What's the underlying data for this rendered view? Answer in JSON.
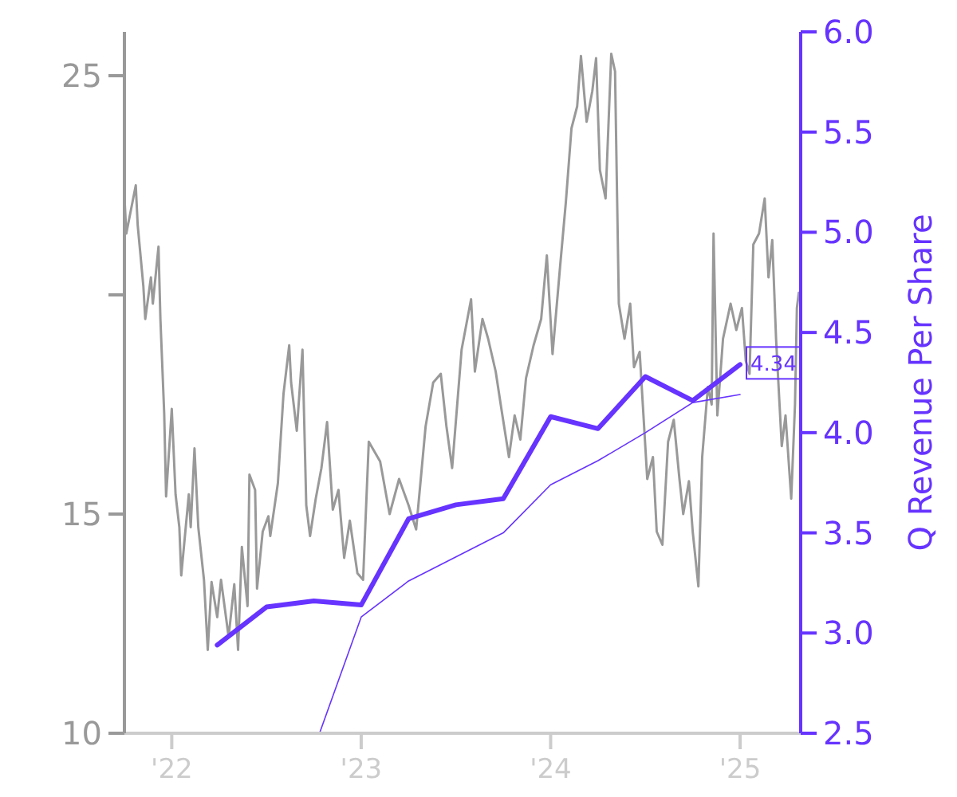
{
  "chart_data": {
    "type": "line",
    "y2label": "Q Revenue Per Share",
    "xlim": [
      2021.75,
      2025.32
    ],
    "xticks": [
      {
        "value": 2022,
        "label": "'22"
      },
      {
        "value": 2023,
        "label": "'23"
      },
      {
        "value": 2024,
        "label": "'24"
      },
      {
        "value": 2025,
        "label": "'25"
      }
    ],
    "ylim": [
      10,
      26
    ],
    "yticks": [
      10,
      15,
      {
        "value": 20,
        "label": null
      },
      25
    ],
    "y2lim": [
      2.5,
      6
    ],
    "y2ticks": [
      2.5,
      {
        "value": 3,
        "label": "3.0"
      },
      3.5,
      {
        "value": 4,
        "label": "4.0"
      },
      4.5,
      {
        "value": 5,
        "label": "5.0"
      },
      5.5,
      {
        "value": 6,
        "label": "6.0"
      }
    ],
    "grid": false,
    "series": [
      {
        "color": "#999999",
        "x": [
          2021.75,
          2021.76,
          2021.81,
          2021.82,
          2021.85,
          2021.86,
          2021.89,
          2021.9,
          2021.93,
          2021.94,
          2021.96,
          2021.97,
          2022.0,
          2022.02,
          2022.04,
          2022.05,
          2022.09,
          2022.1,
          2022.12,
          2022.14,
          2022.17,
          2022.19,
          2022.21,
          2022.24,
          2022.26,
          2022.3,
          2022.33,
          2022.35,
          2022.37,
          2022.4,
          2022.41,
          2022.44,
          2022.45,
          2022.48,
          2022.51,
          2022.52,
          2022.56,
          2022.59,
          2022.62,
          2022.63,
          2022.66,
          2022.69,
          2022.71,
          2022.73,
          2022.76,
          2022.79,
          2022.82,
          2022.85,
          2022.88,
          2022.91,
          2022.94,
          2022.98,
          2023.01,
          2023.04,
          2023.1,
          2023.15,
          2023.2,
          2023.25,
          2023.29,
          2023.34,
          2023.38,
          2023.42,
          2023.45,
          2023.48,
          2023.53,
          2023.58,
          2023.6,
          2023.64,
          2023.67,
          2023.71,
          2023.74,
          2023.78,
          2023.81,
          2023.84,
          2023.87,
          2023.91,
          2023.95,
          2023.98,
          2024.01,
          2024.05,
          2024.08,
          2024.11,
          2024.14,
          2024.16,
          2024.19,
          2024.22,
          2024.24,
          2024.26,
          2024.29,
          2024.32,
          2024.34,
          2024.36,
          2024.39,
          2024.42,
          2024.44,
          2024.47,
          2024.51,
          2024.54,
          2024.56,
          2024.59,
          2024.62,
          2024.65,
          2024.68,
          2024.7,
          2024.73,
          2024.75,
          2024.78,
          2024.8,
          2024.83,
          2024.85,
          2024.86,
          2024.88,
          2024.91,
          2024.95,
          2024.98,
          2025.01,
          2025.03,
          2025.05,
          2025.07,
          2025.1,
          2025.13,
          2025.15,
          2025.17,
          2025.19,
          2025.22,
          2025.24,
          2025.27,
          2025.29,
          2025.3,
          2025.31
        ],
        "values": [
          22.25,
          21.4,
          22.5,
          21.6,
          20.2,
          19.45,
          20.4,
          19.8,
          21.1,
          19.45,
          17.3,
          15.4,
          17.4,
          15.45,
          14.7,
          13.6,
          15.45,
          14.7,
          16.5,
          14.7,
          13.5,
          11.9,
          13.45,
          12.65,
          13.5,
          12.2,
          13.4,
          11.9,
          14.25,
          12.9,
          15.9,
          15.55,
          13.3,
          14.6,
          14.95,
          14.5,
          15.7,
          17.75,
          18.85,
          18.0,
          16.9,
          18.75,
          15.2,
          14.5,
          15.35,
          16.05,
          17.1,
          15.1,
          15.55,
          14.0,
          14.85,
          13.65,
          13.5,
          16.65,
          16.2,
          15.0,
          15.8,
          15.2,
          14.65,
          17.0,
          18.0,
          18.2,
          17.0,
          16.05,
          18.75,
          19.9,
          18.25,
          19.45,
          19.0,
          18.25,
          17.4,
          16.3,
          17.25,
          16.7,
          18.1,
          18.85,
          19.45,
          20.9,
          18.65,
          20.65,
          22.1,
          23.8,
          24.3,
          25.45,
          23.95,
          24.65,
          25.4,
          22.85,
          22.2,
          25.5,
          25.1,
          19.8,
          19.0,
          19.8,
          18.35,
          18.7,
          15.8,
          16.3,
          14.6,
          14.3,
          16.65,
          17.15,
          15.8,
          15.0,
          15.75,
          14.6,
          13.35,
          16.3,
          17.9,
          17.5,
          21.4,
          17.25,
          19.0,
          19.8,
          19.2,
          19.7,
          18.5,
          18.2,
          21.15,
          21.4,
          22.2,
          20.4,
          21.25,
          19.0,
          16.55,
          17.25,
          15.35,
          17.5,
          19.7,
          20.05
        ]
      },
      {
        "color": "#6633ff",
        "axis": "y2",
        "x": [
          2022.24,
          2022.5,
          2022.75,
          2023.0,
          2023.25,
          2023.5,
          2023.75,
          2024.0,
          2024.25,
          2024.5,
          2024.75,
          2025.0
        ],
        "values": [
          2.94,
          3.13,
          3.16,
          3.14,
          3.57,
          3.64,
          3.67,
          4.08,
          4.02,
          4.28,
          4.16,
          4.34
        ],
        "value_labels": [
          null,
          null,
          null,
          null,
          null,
          null,
          null,
          null,
          null,
          null,
          null,
          "4.34"
        ]
      },
      {
        "color": "#6633ff",
        "axis": "y2",
        "x": [
          2022.78,
          2023.0,
          2023.25,
          2023.5,
          2023.75,
          2024.0,
          2024.25,
          2024.5,
          2024.75,
          2025.0
        ],
        "values": [
          2.5,
          3.08,
          3.26,
          3.38,
          3.5,
          3.74,
          3.86,
          4.0,
          4.15,
          4.19
        ]
      }
    ]
  }
}
